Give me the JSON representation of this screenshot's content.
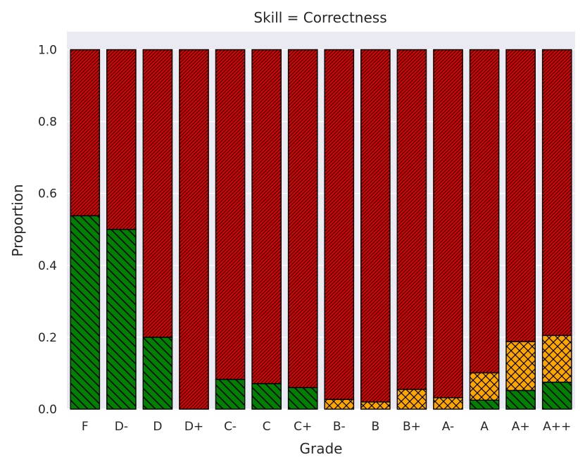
{
  "chart_data": {
    "type": "bar",
    "stacked": true,
    "title": "Skill = Correctness",
    "xlabel": "Grade",
    "ylabel": "Proportion",
    "ylim": [
      0,
      1.05
    ],
    "yticks": [
      "0.0",
      "0.2",
      "0.4",
      "0.6",
      "0.8",
      "1.0"
    ],
    "grid": true,
    "legend": "none",
    "categories": [
      "F",
      "D-",
      "D",
      "D+",
      "C-",
      "C",
      "C+",
      "B-",
      "B",
      "B+",
      "A-",
      "A",
      "A+",
      "A++"
    ],
    "series": [
      {
        "color": "#008000",
        "hatch": "backslash",
        "values": [
          0.538,
          0.5,
          0.2,
          0.0,
          0.083,
          0.071,
          0.06,
          0.0,
          0.0,
          0.0,
          0.0,
          0.025,
          0.052,
          0.075
        ]
      },
      {
        "color": "#FFA500",
        "hatch": "cross",
        "values": [
          0.0,
          0.0,
          0.0,
          0.0,
          0.0,
          0.0,
          0.0,
          0.027,
          0.02,
          0.055,
          0.032,
          0.076,
          0.136,
          0.13
        ]
      },
      {
        "color": "#E00000",
        "hatch": "dense-slash",
        "values": [
          0.462,
          0.5,
          0.8,
          1.0,
          0.917,
          0.929,
          0.94,
          0.973,
          0.98,
          0.945,
          0.968,
          0.899,
          0.812,
          0.795
        ]
      }
    ]
  }
}
